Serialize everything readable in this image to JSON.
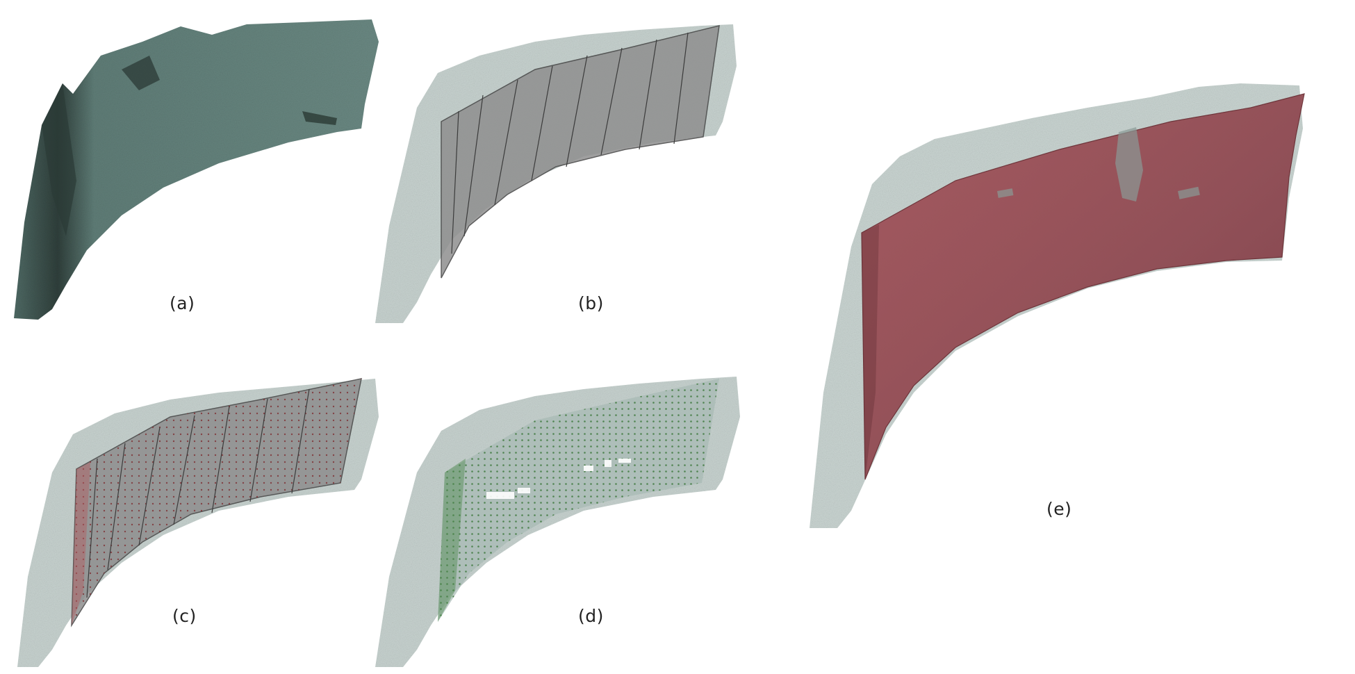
{
  "figure": {
    "panels": [
      {
        "id": "a",
        "label": "(a)"
      },
      {
        "id": "b",
        "label": "(b)"
      },
      {
        "id": "c",
        "label": "(c)"
      },
      {
        "id": "d",
        "label": "(d)"
      },
      {
        "id": "e",
        "label": "(e)"
      }
    ],
    "colors": {
      "mesh": "#5e7a74",
      "mesh_dark": "#33443f",
      "cloud": "#c3d0cd",
      "patch_grey": "#8a8a8a",
      "sample_dots_red": "#9a3a3a",
      "sample_dots_green": "#3f7a3f",
      "fitted_surface": "#9b4a52"
    }
  }
}
